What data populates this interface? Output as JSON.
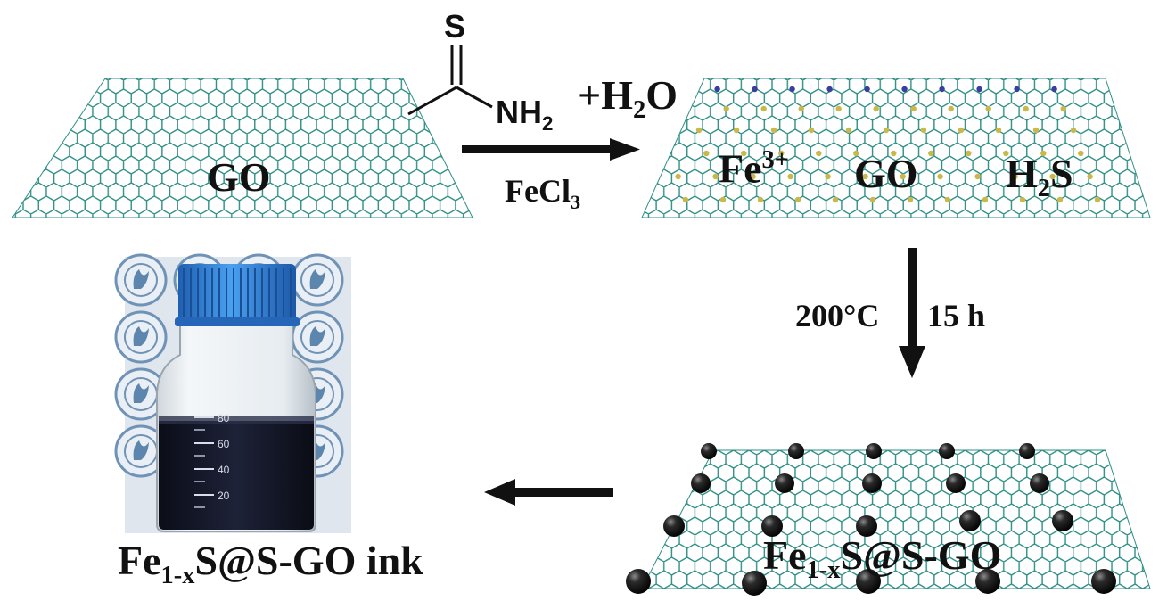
{
  "reagent": {
    "sulfur": "S",
    "amine": "NH",
    "amine_sub": "2",
    "water_pre": "+H",
    "water_sub": "2",
    "water_post": "O",
    "catalyst": "FeCl",
    "catalyst_sub": "3"
  },
  "sheet1": {
    "label": "GO"
  },
  "sheet2": {
    "iron": "Fe",
    "iron_sup": "3+",
    "go": "GO",
    "h2s_pre": "H",
    "h2s_sub": "2",
    "h2s_post": "S"
  },
  "step2": {
    "temperature": "200°C",
    "time": "15 h"
  },
  "sheet3": {
    "pre": "Fe",
    "sub": "1-x",
    "post": "S@S-GO"
  },
  "ink": {
    "pre": "Fe",
    "sub": "1-x",
    "post": "S@S-GO ink"
  },
  "photo": {
    "graduations": [
      "80",
      "60",
      "40",
      "20"
    ]
  },
  "colors": {
    "lattice": "#2f8f86",
    "atom_n": "#3a3f9e",
    "atom_s": "#c9b84a",
    "particle": "#111111",
    "cap": "#2f7fd6",
    "liquid": "#15182a"
  }
}
